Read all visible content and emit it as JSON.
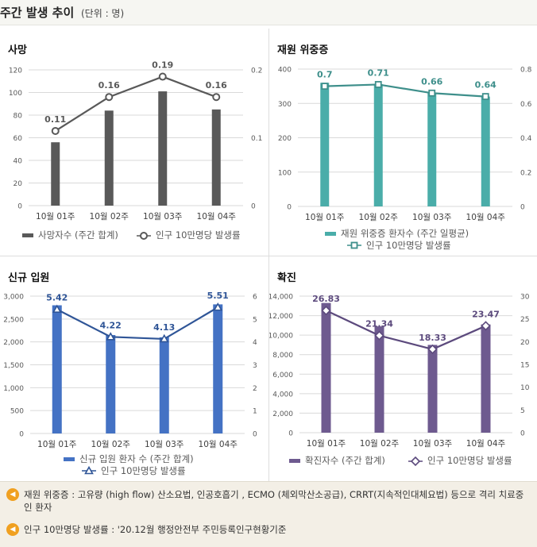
{
  "header": {
    "title": "주간 발생 추이",
    "unit": "(단위 : 명)"
  },
  "chart_data": [
    {
      "id": "deaths",
      "type": "bar+line",
      "title": "사망",
      "categories": [
        "10월 01주",
        "10월 02주",
        "10월 03주",
        "10월 04주"
      ],
      "bar_series": {
        "name": "사망자수 (주간 합계)",
        "values": [
          56,
          84,
          101,
          85
        ],
        "color": "#595959"
      },
      "line_series": {
        "name": "인구 10만명당 발생률",
        "values": [
          0.11,
          0.16,
          0.19,
          0.16
        ],
        "labels": [
          "0.11",
          "0.16",
          "0.19",
          "0.16"
        ],
        "color": "#595959",
        "marker": "circle"
      },
      "left_axis": {
        "min": 0,
        "max": 120,
        "step": 20,
        "ticks": [
          "0",
          "20",
          "40",
          "60",
          "80",
          "100",
          "120"
        ]
      },
      "right_axis": {
        "min": 0,
        "max": 0.2,
        "ticks": [
          "0",
          "0.1",
          "0.2"
        ]
      },
      "legend": "bottom"
    },
    {
      "id": "critical",
      "type": "bar+line",
      "title": "재원 위중증",
      "categories": [
        "10월 01주",
        "10월 02주",
        "10월 03주",
        "10월 04주"
      ],
      "bar_series": {
        "name": "재원 위중증 환자수 (주간 일평균)",
        "values": [
          360,
          356,
          331,
          320
        ],
        "color": "#4aada9"
      },
      "line_series": {
        "name": "인구 10만명당 발생률",
        "values": [
          0.7,
          0.71,
          0.66,
          0.64
        ],
        "labels": [
          "0.7",
          "0.71",
          "0.66",
          "0.64"
        ],
        "color": "#3e8f8b",
        "marker": "square"
      },
      "left_axis": {
        "min": 0,
        "max": 400,
        "step": 100,
        "ticks": [
          "0",
          "100",
          "200",
          "300",
          "400"
        ]
      },
      "right_axis": {
        "min": 0,
        "max": 0.8,
        "ticks": [
          "0",
          "0.2",
          "0.4",
          "0.6",
          "0.8"
        ]
      },
      "legend": "bottom"
    },
    {
      "id": "admissions",
      "type": "bar+line",
      "title": "신규 입원",
      "categories": [
        "10월 01주",
        "10월 02주",
        "10월 03주",
        "10월 04주"
      ],
      "bar_series": {
        "name": "신규 입원 환자 수 (주간 합계)",
        "values": [
          2800,
          2150,
          2100,
          2820
        ],
        "color": "#4472c4"
      },
      "line_series": {
        "name": "인구 10만명당 발생률",
        "values": [
          5.42,
          4.22,
          4.13,
          5.51
        ],
        "labels": [
          "5.42",
          "4.22",
          "4.13",
          "5.51"
        ],
        "color": "#2f5597",
        "marker": "triangle"
      },
      "left_axis": {
        "min": 0,
        "max": 3000,
        "step": 500,
        "ticks": [
          "0",
          "500",
          "1,000",
          "1,500",
          "2,000",
          "2,500",
          "3,000"
        ]
      },
      "right_axis": {
        "min": 0,
        "max": 6,
        "ticks": [
          "0",
          "1",
          "2",
          "3",
          "4",
          "5",
          "6"
        ]
      },
      "legend": "bottom"
    },
    {
      "id": "confirmed",
      "type": "bar+line",
      "title": "확진",
      "categories": [
        "10월 01주",
        "10월 02주",
        "10월 03주",
        "10월 04주"
      ],
      "bar_series": {
        "name": "확진자수 (주간 합계)",
        "values": [
          13300,
          10900,
          9000,
          11100
        ],
        "color": "#6e5a8f"
      },
      "line_series": {
        "name": "인구 10만명당 발생률",
        "values": [
          26.83,
          21.34,
          18.33,
          23.47
        ],
        "labels": [
          "26.83",
          "21.34",
          "18.33",
          "23.47"
        ],
        "color": "#5c4a7d",
        "marker": "diamond"
      },
      "left_axis": {
        "min": 0,
        "max": 14000,
        "step": 2000,
        "ticks": [
          "0",
          "2,000",
          "4,000",
          "6,000",
          "8,000",
          "10,000",
          "12,000",
          "14,000"
        ]
      },
      "right_axis": {
        "min": 0,
        "max": 30,
        "ticks": [
          "0",
          "5",
          "10",
          "15",
          "20",
          "25",
          "30"
        ]
      },
      "legend": "bottom"
    }
  ],
  "notes": [
    {
      "icon": "speaker-icon",
      "text": "재원 위중증 : 고유량 (high flow) 산소요법, 인공호흡기 , ECMO (체외막산소공급), CRRT(지속적인대체요법) 등으로 격리 치료중인 환자"
    },
    {
      "icon": "speaker-icon",
      "text": "인구 10만명당 발생률 : '20.12월 행정안전부 주민등록인구현황기준"
    }
  ]
}
